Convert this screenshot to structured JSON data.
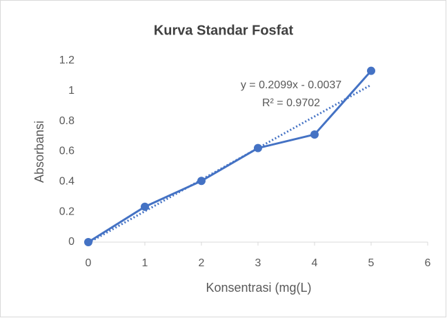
{
  "chart_data": {
    "type": "scatter-line",
    "title": "Kurva Standar Fosfat",
    "x_label": "Konsentrasi (mg(L)",
    "y_label": "Absorbansi",
    "x": [
      0,
      1,
      2,
      3,
      4,
      5
    ],
    "series": [
      {
        "color": "#4472c4",
        "values": [
          0,
          0.234,
          0.405,
          0.622,
          0.712,
          1.133
        ]
      }
    ],
    "trendline": {
      "type": "linear",
      "equation": "y = 0.2099x - 0.0037",
      "r_squared": "R² = 0.9702"
    },
    "xlim": [
      0,
      6
    ],
    "xticks": [
      0,
      1,
      2,
      3,
      4,
      5,
      6
    ],
    "ylim": [
      0,
      1.2
    ],
    "yticks": [
      0,
      0.2,
      0.4,
      0.6,
      0.8,
      1,
      1.2
    ],
    "grid": false
  }
}
